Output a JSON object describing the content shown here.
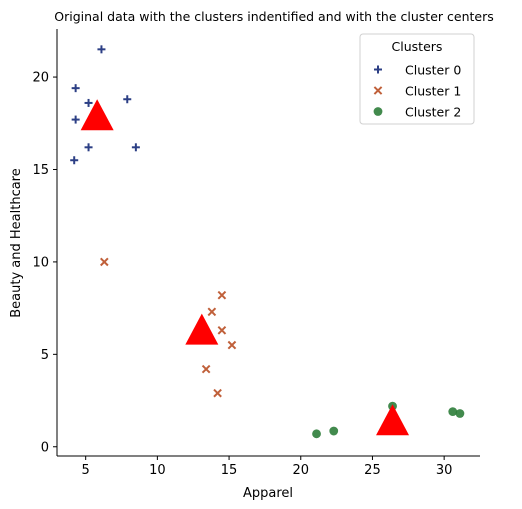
{
  "chart_data": {
    "type": "scatter",
    "title": "Original data with the clusters indentified and with the cluster centers",
    "xlabel": "Apparel",
    "ylabel": "Beauty and Healthcare",
    "xlim": [
      3,
      32.5
    ],
    "ylim": [
      -0.5,
      22.6
    ],
    "xticks": [
      5,
      10,
      15,
      20,
      25,
      30
    ],
    "yticks": [
      0,
      5,
      10,
      15,
      20
    ],
    "grid": false,
    "legend": {
      "title": "Clusters",
      "placement": "top-right"
    },
    "series": [
      {
        "name": "Cluster 0",
        "marker": "plus",
        "color": "#2c3f85",
        "points": [
          [
            6.1,
            21.5
          ],
          [
            4.3,
            19.4
          ],
          [
            5.2,
            18.6
          ],
          [
            7.9,
            18.8
          ],
          [
            4.3,
            17.7
          ],
          [
            5.2,
            16.2
          ],
          [
            8.5,
            16.2
          ],
          [
            4.2,
            15.5
          ]
        ]
      },
      {
        "name": "Cluster 1",
        "marker": "x",
        "color": "#c0603a",
        "points": [
          [
            6.3,
            10.0
          ],
          [
            14.5,
            8.2
          ],
          [
            13.8,
            7.3
          ],
          [
            14.5,
            6.3
          ],
          [
            15.2,
            5.5
          ],
          [
            13.4,
            4.2
          ],
          [
            14.2,
            2.9
          ]
        ]
      },
      {
        "name": "Cluster 2",
        "marker": "circle",
        "color": "#2e7d3a",
        "points": [
          [
            21.1,
            0.7
          ],
          [
            22.3,
            0.85
          ],
          [
            26.4,
            2.2
          ],
          [
            30.6,
            1.9
          ],
          [
            31.1,
            1.8
          ]
        ]
      }
    ],
    "centers": {
      "color": "#ff0000",
      "marker": "triangle",
      "points": [
        [
          5.8,
          17.8
        ],
        [
          13.1,
          6.2
        ],
        [
          26.4,
          1.3
        ]
      ]
    }
  }
}
